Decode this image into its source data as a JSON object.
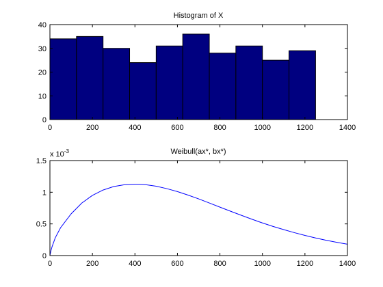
{
  "colors": {
    "figure_background": "#ffffff",
    "axes_background": "#ffffff",
    "bar_fill": "#000080",
    "bar_edge": "#000000",
    "curve": "#0000ff"
  },
  "chart_data": [
    {
      "type": "bar",
      "title": "Histogram of X",
      "xlabel": "",
      "ylabel": "",
      "bin_edges": [
        0,
        125,
        250,
        375,
        500,
        625,
        750,
        875,
        1000,
        1125,
        1250
      ],
      "values": [
        34,
        35,
        30,
        24,
        31,
        36,
        28,
        31,
        25,
        29
      ],
      "xlim": [
        0,
        1400
      ],
      "ylim": [
        0,
        40
      ],
      "xticks": [
        0,
        200,
        400,
        600,
        800,
        1000,
        1200,
        1400
      ],
      "yticks": [
        0,
        10,
        20,
        30,
        40
      ],
      "xtick_labels": [
        "0",
        "200",
        "400",
        "600",
        "800",
        "1000",
        "1200",
        "1400"
      ],
      "ytick_labels": [
        "0",
        "10",
        "20",
        "30",
        "40"
      ],
      "grid": false,
      "legend": "none"
    },
    {
      "type": "line",
      "title": "Weibull(ax*, bx*)",
      "xlabel": "",
      "ylabel": "",
      "y_exponent_label": "x 10",
      "y_exponent_power": "-3",
      "x": [
        0,
        1,
        5,
        10,
        25,
        50,
        100,
        150,
        200,
        250,
        300,
        350,
        400,
        420,
        450,
        500,
        550,
        600,
        650,
        700,
        750,
        800,
        850,
        900,
        950,
        1000,
        1050,
        1100,
        1150,
        1200,
        1250,
        1300,
        1350,
        1400
      ],
      "y": [
        0,
        0.018,
        0.078,
        0.14,
        0.28,
        0.44,
        0.66,
        0.83,
        0.95,
        1.035,
        1.09,
        1.118,
        1.128,
        1.128,
        1.12,
        1.095,
        1.057,
        1.01,
        0.955,
        0.895,
        0.83,
        0.765,
        0.7,
        0.637,
        0.575,
        0.515,
        0.46,
        0.41,
        0.362,
        0.318,
        0.278,
        0.241,
        0.209,
        0.18
      ],
      "xlim": [
        0,
        1400
      ],
      "ylim": [
        0,
        1.5
      ],
      "xticks": [
        0,
        200,
        400,
        600,
        800,
        1000,
        1200,
        1400
      ],
      "yticks": [
        0,
        0.5,
        1,
        1.5
      ],
      "xtick_labels": [
        "0",
        "200",
        "400",
        "600",
        "800",
        "1000",
        "1200",
        "1400"
      ],
      "ytick_labels": [
        "0",
        "0.5",
        "1",
        "1.5"
      ],
      "grid": false,
      "legend": "none"
    }
  ]
}
